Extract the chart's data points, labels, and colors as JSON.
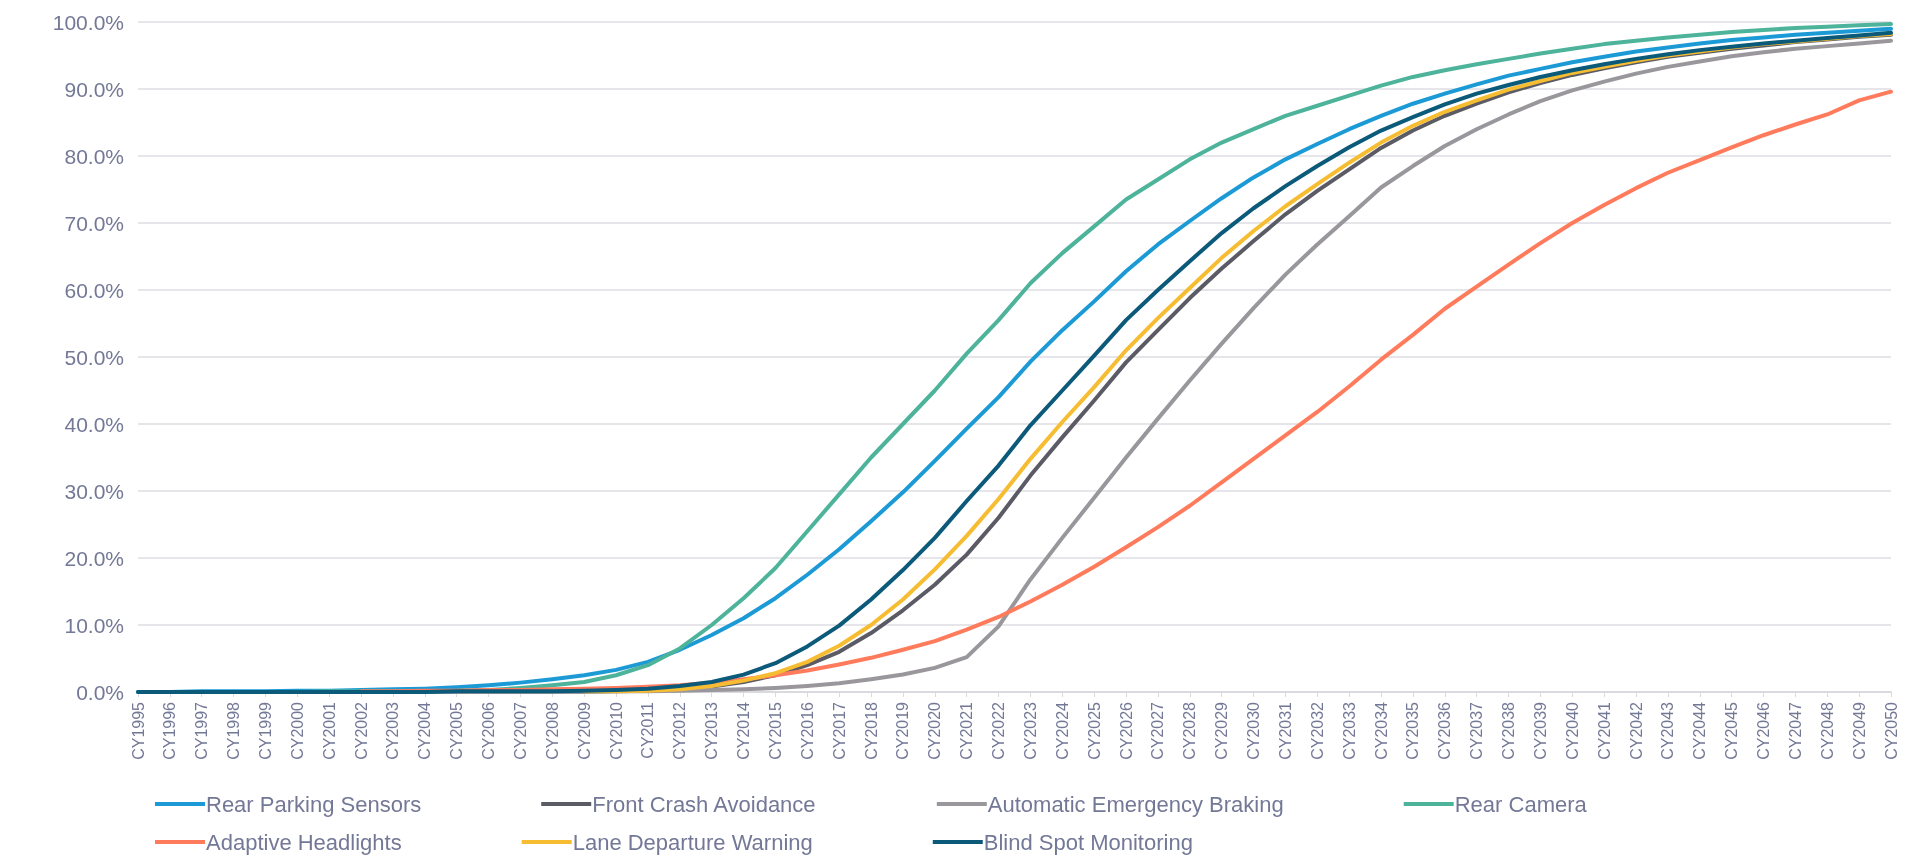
{
  "chart_data": {
    "type": "line",
    "categories": [
      "CY1995",
      "CY1996",
      "CY1997",
      "CY1998",
      "CY1999",
      "CY2000",
      "CY2001",
      "CY2002",
      "CY2003",
      "CY2004",
      "CY2005",
      "CY2006",
      "CY2007",
      "CY2008",
      "CY2009",
      "CY2010",
      "CY2011",
      "CY2012",
      "CY2013",
      "CY2014",
      "CY2015",
      "CY2016",
      "CY2017",
      "CY2018",
      "CY2019",
      "CY2020",
      "CY2021",
      "CY2022",
      "CY2023",
      "CY2024",
      "CY2025",
      "CY2026",
      "CY2027",
      "CY2028",
      "CY2029",
      "CY2030",
      "CY2031",
      "CY2032",
      "CY2033",
      "CY2034",
      "CY2035",
      "CY2036",
      "CY2037",
      "CY2038",
      "CY2039",
      "CY2040",
      "CY2041",
      "CY2042",
      "CY2043",
      "CY2044",
      "CY2045",
      "CY2046",
      "CY2047",
      "CY2048",
      "CY2049",
      "CY2050"
    ],
    "series": [
      {
        "name": "Rear Parking Sensors",
        "color": "#1b9ad6",
        "values": [
          0,
          0,
          0.1,
          0.1,
          0.1,
          0.2,
          0.2,
          0.3,
          0.4,
          0.5,
          0.7,
          1.0,
          1.4,
          1.9,
          2.5,
          3.3,
          4.5,
          6.3,
          8.5,
          11,
          14,
          17.5,
          21.3,
          25.5,
          29.8,
          34.5,
          39.3,
          44,
          49.3,
          54,
          58.3,
          62.8,
          66.8,
          70.3,
          73.7,
          76.8,
          79.5,
          81.8,
          84,
          86,
          87.8,
          89.3,
          90.7,
          92,
          93,
          94,
          94.8,
          95.6,
          96.2,
          96.8,
          97.3,
          97.7,
          98.1,
          98.4,
          98.7,
          99
        ]
      },
      {
        "name": "Front Crash Avoidance",
        "color": "#5b5b66",
        "values": [
          null,
          null,
          null,
          null,
          null,
          null,
          null,
          null,
          0,
          0,
          0,
          0,
          0,
          0,
          0.1,
          0.1,
          0.2,
          0.3,
          0.8,
          1.5,
          2.5,
          4,
          6,
          8.8,
          12.2,
          16,
          20.5,
          26,
          32.3,
          38,
          43.5,
          49.2,
          54,
          58.8,
          63.2,
          67.3,
          71.3,
          74.8,
          78,
          81.2,
          83.8,
          86,
          87.8,
          89.5,
          90.9,
          92.1,
          93.1,
          94,
          94.8,
          95.4,
          96,
          96.5,
          97,
          97.4,
          97.8,
          98.1
        ]
      },
      {
        "name": "Automatic Emergency Braking",
        "color": "#9a979c",
        "values": [
          null,
          null,
          null,
          null,
          null,
          null,
          0,
          0,
          0,
          0,
          0,
          0,
          0,
          0,
          0,
          0.1,
          0.1,
          0.2,
          0.3,
          0.4,
          0.6,
          0.9,
          1.3,
          1.9,
          2.6,
          3.6,
          5.2,
          9.8,
          16.8,
          23,
          29,
          35,
          40.8,
          46.5,
          52,
          57.3,
          62.3,
          66.8,
          71,
          75.3,
          78.5,
          81.5,
          84,
          86.2,
          88.2,
          89.8,
          91.1,
          92.3,
          93.3,
          94.1,
          94.9,
          95.5,
          96,
          96.4,
          96.8,
          97.2
        ]
      },
      {
        "name": "Rear Camera",
        "color": "#4db39a",
        "values": [
          null,
          null,
          null,
          0,
          0,
          0,
          0.1,
          0.1,
          0.1,
          0.1,
          0.2,
          0.3,
          0.6,
          1.0,
          1.5,
          2.5,
          4,
          6.5,
          10,
          14,
          18.5,
          24,
          29.5,
          35,
          40,
          45,
          50.5,
          55.5,
          61,
          65.5,
          69.5,
          73.5,
          76.5,
          79.5,
          82,
          84,
          86,
          87.5,
          89,
          90.5,
          91.8,
          92.8,
          93.7,
          94.5,
          95.3,
          96,
          96.7,
          97.2,
          97.7,
          98.1,
          98.5,
          98.8,
          99.1,
          99.3,
          99.5,
          99.7
        ]
      },
      {
        "name": "Adaptive Headlights",
        "color": "#ff7b5c",
        "values": [
          null,
          null,
          null,
          null,
          null,
          null,
          null,
          0.1,
          0.1,
          0.2,
          0.2,
          0.3,
          0.3,
          0.4,
          0.5,
          0.6,
          0.8,
          1.0,
          1.4,
          1.9,
          2.5,
          3.2,
          4.1,
          5.1,
          6.3,
          7.6,
          9.3,
          11.2,
          13.5,
          16,
          18.7,
          21.6,
          24.6,
          27.8,
          31.3,
          34.8,
          38.3,
          41.8,
          45.6,
          49.6,
          53.3,
          57.2,
          60.5,
          63.8,
          67,
          70,
          72.7,
          75.2,
          77.5,
          79.4,
          81.3,
          83.1,
          84.7,
          86.2,
          88.3,
          89.6
        ]
      },
      {
        "name": "Lane Departure Warning",
        "color": "#f7bd32",
        "values": [
          null,
          null,
          null,
          null,
          null,
          null,
          null,
          null,
          null,
          null,
          null,
          null,
          null,
          null,
          0.1,
          0.1,
          0.2,
          0.4,
          0.9,
          1.7,
          2.8,
          4.5,
          6.9,
          10,
          13.8,
          18.3,
          23.3,
          28.8,
          34.8,
          40.3,
          45.5,
          51,
          55.8,
          60.3,
          64.8,
          68.8,
          72.5,
          75.8,
          79,
          82,
          84.5,
          86.6,
          88.3,
          89.9,
          91.2,
          92.4,
          93.3,
          94.2,
          95,
          95.6,
          96.2,
          96.7,
          97.1,
          97.5,
          97.9,
          98.2
        ]
      },
      {
        "name": "Blind Spot Monitoring",
        "color": "#0b5a7a",
        "values": [
          0,
          0,
          0,
          0,
          0,
          0,
          0,
          0,
          0,
          0,
          0.1,
          0.1,
          0.1,
          0.1,
          0.2,
          0.3,
          0.5,
          0.9,
          1.5,
          2.6,
          4.3,
          6.8,
          9.9,
          13.8,
          18.2,
          23,
          28.5,
          33.8,
          39.8,
          45,
          50.2,
          55.5,
          60,
          64.3,
          68.5,
          72.2,
          75.5,
          78.5,
          81.3,
          83.8,
          85.8,
          87.7,
          89.3,
          90.6,
          91.8,
          92.8,
          93.7,
          94.5,
          95.2,
          95.8,
          96.3,
          96.8,
          97.2,
          97.6,
          98,
          98.4
        ]
      }
    ],
    "ylim": [
      0,
      100
    ],
    "yticks": [
      {
        "value": 0,
        "label": "0.0%"
      },
      {
        "value": 10,
        "label": "10.0%"
      },
      {
        "value": 20,
        "label": "20.0%"
      },
      {
        "value": 30,
        "label": "30.0%"
      },
      {
        "value": 40,
        "label": "40.0%"
      },
      {
        "value": 50,
        "label": "50.0%"
      },
      {
        "value": 60,
        "label": "60.0%"
      },
      {
        "value": 70,
        "label": "70.0%"
      },
      {
        "value": 80,
        "label": "80.0%"
      },
      {
        "value": 90,
        "label": "90.0%"
      },
      {
        "value": 100,
        "label": "100.0%"
      }
    ],
    "grid": "y",
    "legend": "bottom",
    "marker": "none",
    "line_style": "solid"
  }
}
